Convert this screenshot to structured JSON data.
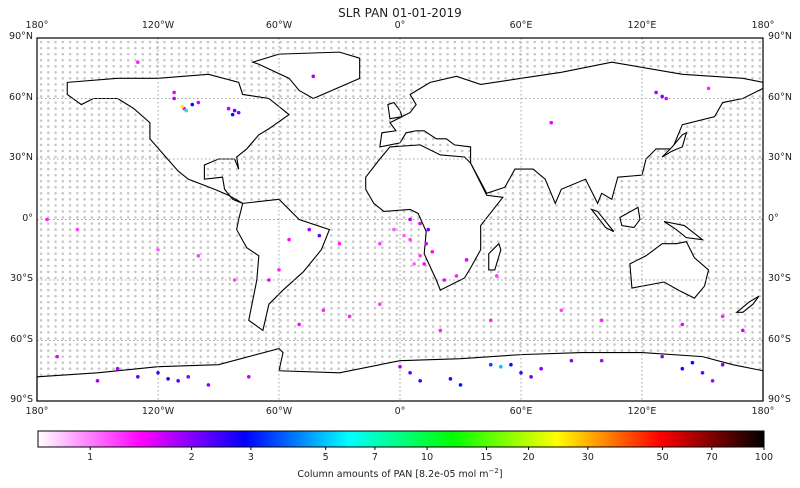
{
  "title": "SLR PAN 01-01-2019",
  "map": {
    "lon_labels": [
      "180°",
      "120°W",
      "60°W",
      "0°",
      "60°E",
      "120°E",
      "180°"
    ],
    "lat_labels": [
      "90°N",
      "60°N",
      "30°N",
      "0°",
      "30°S",
      "60°S",
      "90°S"
    ],
    "land_fill": "#ffffff",
    "coast_color": "#000000",
    "no_data_dot_color": "#c8c8c8",
    "points": [
      [
        -130,
        78,
        1.3
      ],
      [
        -112,
        63,
        1.5
      ],
      [
        -112,
        60,
        1.8
      ],
      [
        -107,
        55,
        1.4
      ],
      [
        -108,
        56,
        25
      ],
      [
        -106,
        54,
        8
      ],
      [
        -103,
        57,
        3
      ],
      [
        -100,
        58,
        1.6
      ],
      [
        -85,
        55,
        1.7
      ],
      [
        -83,
        52,
        3
      ],
      [
        -82,
        54,
        2.2
      ],
      [
        -80,
        53,
        2
      ],
      [
        -43,
        71,
        1.8
      ],
      [
        127,
        63,
        1.8
      ],
      [
        130,
        61,
        2
      ],
      [
        132,
        60,
        1.6
      ],
      [
        153,
        65,
        1.3
      ],
      [
        75,
        48,
        1.5
      ],
      [
        5,
        0,
        1.8
      ],
      [
        10,
        -2,
        1.5
      ],
      [
        14,
        -5,
        2
      ],
      [
        13,
        -12,
        1.6
      ],
      [
        16,
        -16,
        1.4
      ],
      [
        10,
        -18,
        1.2
      ],
      [
        7,
        -22,
        1.1
      ],
      [
        12,
        -22,
        1.4
      ],
      [
        5,
        -10,
        1.2
      ],
      [
        -3,
        -5,
        1.1
      ],
      [
        2,
        -8,
        1.1
      ],
      [
        -10,
        -12,
        1.2
      ],
      [
        22,
        -30,
        1.5
      ],
      [
        28,
        -28,
        1.3
      ],
      [
        33,
        -20,
        1.5
      ],
      [
        48,
        -28,
        1.2
      ],
      [
        -55,
        -10,
        1.4
      ],
      [
        -45,
        -5,
        1.8
      ],
      [
        -40,
        -8,
        2.2
      ],
      [
        -30,
        -12,
        1.3
      ],
      [
        -60,
        -25,
        1.3
      ],
      [
        -65,
        -30,
        1.5
      ],
      [
        -82,
        -30,
        1.2
      ],
      [
        -100,
        -18,
        1.2
      ],
      [
        -120,
        -15,
        1.1
      ],
      [
        -160,
        -5,
        1.2
      ],
      [
        -175,
        0,
        1.3
      ],
      [
        -38,
        -45,
        1.3
      ],
      [
        -25,
        -48,
        1.3
      ],
      [
        -10,
        -42,
        1.2
      ],
      [
        -50,
        -52,
        1.4
      ],
      [
        20,
        -55,
        1.3
      ],
      [
        45,
        -50,
        1.3
      ],
      [
        80,
        -45,
        1.2
      ],
      [
        100,
        -50,
        1.3
      ],
      [
        140,
        -52,
        1.5
      ],
      [
        160,
        -48,
        1.3
      ],
      [
        170,
        -55,
        1.6
      ],
      [
        -130,
        -78,
        2.2
      ],
      [
        -120,
        -76,
        2.4
      ],
      [
        -115,
        -79,
        2.6
      ],
      [
        -110,
        -80,
        2.3
      ],
      [
        -105,
        -78,
        2
      ],
      [
        -95,
        -82,
        2
      ],
      [
        -140,
        -74,
        1.8
      ],
      [
        -150,
        -80,
        1.8
      ],
      [
        -170,
        -68,
        1.5
      ],
      [
        -75,
        -78,
        1.7
      ],
      [
        0,
        -73,
        1.8
      ],
      [
        5,
        -76,
        2.2
      ],
      [
        10,
        -80,
        2.4
      ],
      [
        25,
        -79,
        2.6
      ],
      [
        30,
        -82,
        3
      ],
      [
        45,
        -72,
        3.5
      ],
      [
        50,
        -73,
        5
      ],
      [
        55,
        -72,
        3
      ],
      [
        60,
        -76,
        2.4
      ],
      [
        65,
        -78,
        2.2
      ],
      [
        70,
        -74,
        2
      ],
      [
        85,
        -70,
        2
      ],
      [
        100,
        -70,
        1.8
      ],
      [
        130,
        -68,
        2
      ],
      [
        140,
        -74,
        2.5
      ],
      [
        145,
        -71,
        3
      ],
      [
        150,
        -76,
        2.2
      ],
      [
        155,
        -80,
        1.8
      ],
      [
        160,
        -72,
        2
      ]
    ]
  },
  "colorbar": {
    "ticks": [
      "1",
      "2",
      "3",
      "5",
      "7",
      "10",
      "15",
      "20",
      "30",
      "50",
      "70",
      "100"
    ],
    "label": "Column amounts of PAN [8.2e-05 mol m",
    "label_sup": "−2",
    "label_end": "]",
    "colors": [
      "#ffffff",
      "#ff00ff",
      "#0000ff",
      "#00ffff",
      "#00ff00",
      "#ffff00",
      "#ff0000",
      "#000000"
    ]
  }
}
